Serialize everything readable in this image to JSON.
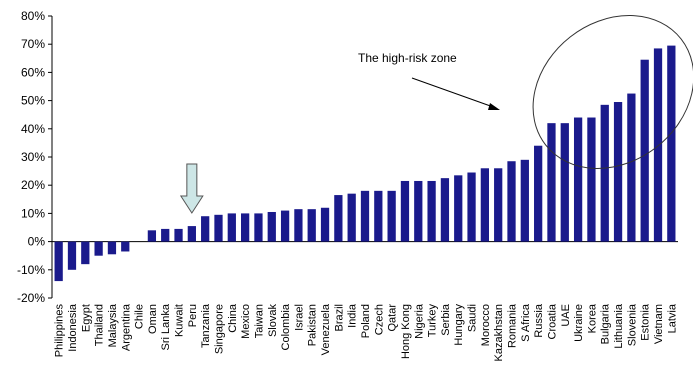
{
  "chart_data": {
    "type": "bar",
    "title": "",
    "xlabel": "",
    "ylabel": "",
    "ylim": [
      -0.2,
      0.8
    ],
    "yticks": [
      -0.2,
      -0.1,
      0.0,
      0.1,
      0.2,
      0.3,
      0.4,
      0.5,
      0.6,
      0.7,
      0.8
    ],
    "ytick_labels": [
      "-20%",
      "-10%",
      "0%",
      "10%",
      "20%",
      "30%",
      "40%",
      "50%",
      "60%",
      "70%",
      "80%"
    ],
    "grid": false,
    "bar_color": "#1a1a8c",
    "categories": [
      "Philippines",
      "Indonesia",
      "Egypt",
      "Thailand",
      "Malaysia",
      "Argentina",
      "Chile",
      "Oman",
      "Sri Lanka",
      "Kuwait",
      "Peru",
      "Tanzania",
      "Singapore",
      "China",
      "Mexico",
      "Taiwan",
      "Slovak",
      "Colombia",
      "Israel",
      "Pakistan",
      "Venezuela",
      "Brazil",
      "India",
      "Poland",
      "Czech",
      "Qatar",
      "Hong Kong",
      "Nigeria",
      "Turkey",
      "Serbia",
      "Hungary",
      "Saudi",
      "Morocco",
      "Kazakhstan",
      "Romania",
      "S Africa",
      "Russia",
      "Croatia",
      "UAE",
      "Ukraine",
      "Korea",
      "Bulgaria",
      "Lithuania",
      "Slovenia",
      "Estonia",
      "Vietnam",
      "Latvia"
    ],
    "values": [
      -0.14,
      -0.1,
      -0.08,
      -0.05,
      -0.045,
      -0.035,
      0.0,
      0.04,
      0.045,
      0.045,
      0.055,
      0.09,
      0.095,
      0.1,
      0.1,
      0.1,
      0.105,
      0.11,
      0.115,
      0.115,
      0.12,
      0.165,
      0.17,
      0.18,
      0.18,
      0.18,
      0.215,
      0.215,
      0.215,
      0.225,
      0.235,
      0.245,
      0.26,
      0.26,
      0.285,
      0.29,
      0.34,
      0.42,
      0.42,
      0.44,
      0.44,
      0.485,
      0.495,
      0.525,
      0.645,
      0.685,
      0.695
    ],
    "annotations": {
      "zone_label": "The high-risk zone",
      "highlight_arrow_category": "Peru",
      "highlight_arrow_color": "#cde6e6"
    }
  }
}
